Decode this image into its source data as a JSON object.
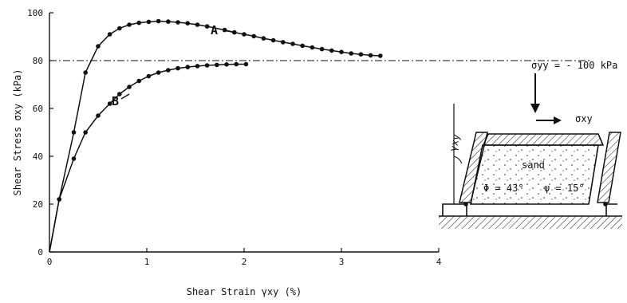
{
  "chart_data": {
    "type": "line",
    "xlabel": "Shear Strain γxy (%)",
    "ylabel": "Shear Stress σxy (kPa)",
    "xlim": [
      0,
      4
    ],
    "ylim": [
      0,
      100
    ],
    "x_ticks": [
      "0",
      "1",
      "2",
      "3",
      "4"
    ],
    "y_ticks": [
      "0",
      "20",
      "40",
      "60",
      "80",
      "100"
    ],
    "grid": false,
    "reference_line": {
      "y": 80,
      "style": "dash-dot"
    },
    "series": [
      {
        "name": "A",
        "x": [
          0,
          0.1,
          0.25,
          0.37,
          0.5,
          0.62,
          0.72,
          0.82,
          0.92,
          1.02,
          1.12,
          1.22,
          1.32,
          1.42,
          1.52,
          1.62,
          1.8,
          1.9,
          2.0,
          2.1,
          2.2,
          2.3,
          2.4,
          2.5,
          2.6,
          2.7,
          2.8,
          2.9,
          3.0,
          3.1,
          3.2,
          3.3,
          3.4
        ],
        "y": [
          0,
          22,
          50,
          75,
          86,
          91,
          93.5,
          95,
          95.8,
          96.2,
          96.5,
          96.3,
          96,
          95.6,
          95,
          94.3,
          92.8,
          91.8,
          91,
          90.2,
          89.3,
          88.5,
          87.7,
          87,
          86.2,
          85.5,
          84.8,
          84.2,
          83.6,
          83,
          82.6,
          82.2,
          82
        ]
      },
      {
        "name": "B",
        "x": [
          0,
          0.1,
          0.25,
          0.37,
          0.5,
          0.62,
          0.72,
          0.82,
          0.92,
          1.02,
          1.12,
          1.22,
          1.32,
          1.42,
          1.52,
          1.62,
          1.72,
          1.82,
          1.92,
          2.02
        ],
        "y": [
          0,
          22,
          39,
          50,
          57,
          62,
          66,
          69,
          71.5,
          73.5,
          75,
          76,
          76.8,
          77.3,
          77.7,
          78,
          78.2,
          78.4,
          78.5,
          78.5
        ]
      }
    ]
  },
  "schematic": {
    "normal_stress_label": "σyy = - 100 kPa",
    "shear_stress_label": "σxy",
    "strain_label": "γxy",
    "material_label": "sand",
    "phi_label": "Φ = 43°",
    "psi_label": "ψ = 15°"
  }
}
